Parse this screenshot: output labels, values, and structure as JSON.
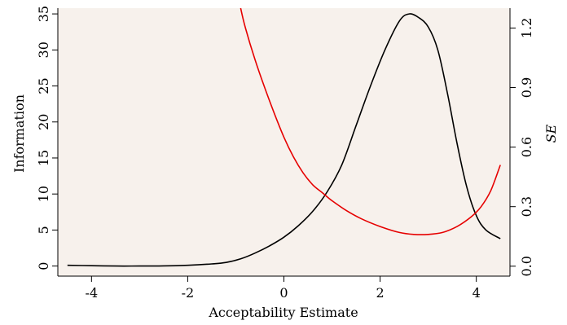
{
  "chart_data": {
    "type": "line",
    "xlabel": "Acceptability Estimate",
    "ylabel": "Information",
    "y2label": "SE",
    "xlim": [
      -4.7,
      4.7
    ],
    "ylim": [
      -1.4,
      35.8
    ],
    "y2lim": [
      -0.05,
      1.3
    ],
    "x_ticks": [
      -4,
      -2,
      0,
      2,
      4
    ],
    "x_tick_labels": [
      "-4",
      "-2",
      "0",
      "2",
      "4"
    ],
    "y_ticks": [
      0,
      5,
      10,
      15,
      20,
      25,
      30,
      35
    ],
    "y_tick_labels": [
      "0",
      "5",
      "10",
      "15",
      "20",
      "25",
      "30",
      "35"
    ],
    "y2_ticks": [
      0.0,
      0.3,
      0.6,
      0.9,
      1.2
    ],
    "y2_tick_labels": [
      "0.0",
      "0.3",
      "0.6",
      "0.9",
      "1.2"
    ],
    "grid": false,
    "background": "#f7f1ec",
    "series": [
      {
        "axis": "left",
        "color": "#000000",
        "x": [
          -4.5,
          -4.0,
          -3.5,
          -3.0,
          -2.5,
          -2.0,
          -1.5,
          -1.2,
          -0.9,
          -0.6,
          -0.3,
          0.0,
          0.3,
          0.6,
          0.9,
          1.2,
          1.5,
          1.8,
          2.1,
          2.4,
          2.6,
          2.8,
          3.0,
          3.2,
          3.4,
          3.6,
          3.8,
          4.0,
          4.2,
          4.5
        ],
        "values": [
          0.1,
          0.05,
          0.0,
          0.0,
          0.02,
          0.1,
          0.3,
          0.5,
          1.0,
          1.8,
          2.8,
          4.0,
          5.6,
          7.6,
          10.3,
          14.0,
          19.5,
          25.0,
          30.0,
          34.0,
          35.0,
          34.5,
          33.2,
          30.0,
          24.0,
          17.0,
          11.0,
          7.0,
          5.0,
          3.8
        ]
      },
      {
        "axis": "right",
        "color": "#e60000",
        "x": [
          -0.9,
          -0.8,
          -0.6,
          -0.4,
          -0.2,
          0.0,
          0.2,
          0.4,
          0.6,
          0.8,
          1.0,
          1.3,
          1.6,
          2.0,
          2.4,
          2.7,
          3.0,
          3.3,
          3.6,
          3.9,
          4.1,
          4.3,
          4.5
        ],
        "values": [
          1.3,
          1.2,
          1.04,
          0.9,
          0.77,
          0.65,
          0.55,
          0.47,
          0.41,
          0.37,
          0.33,
          0.28,
          0.24,
          0.2,
          0.17,
          0.16,
          0.16,
          0.17,
          0.2,
          0.25,
          0.3,
          0.38,
          0.51
        ]
      }
    ]
  }
}
